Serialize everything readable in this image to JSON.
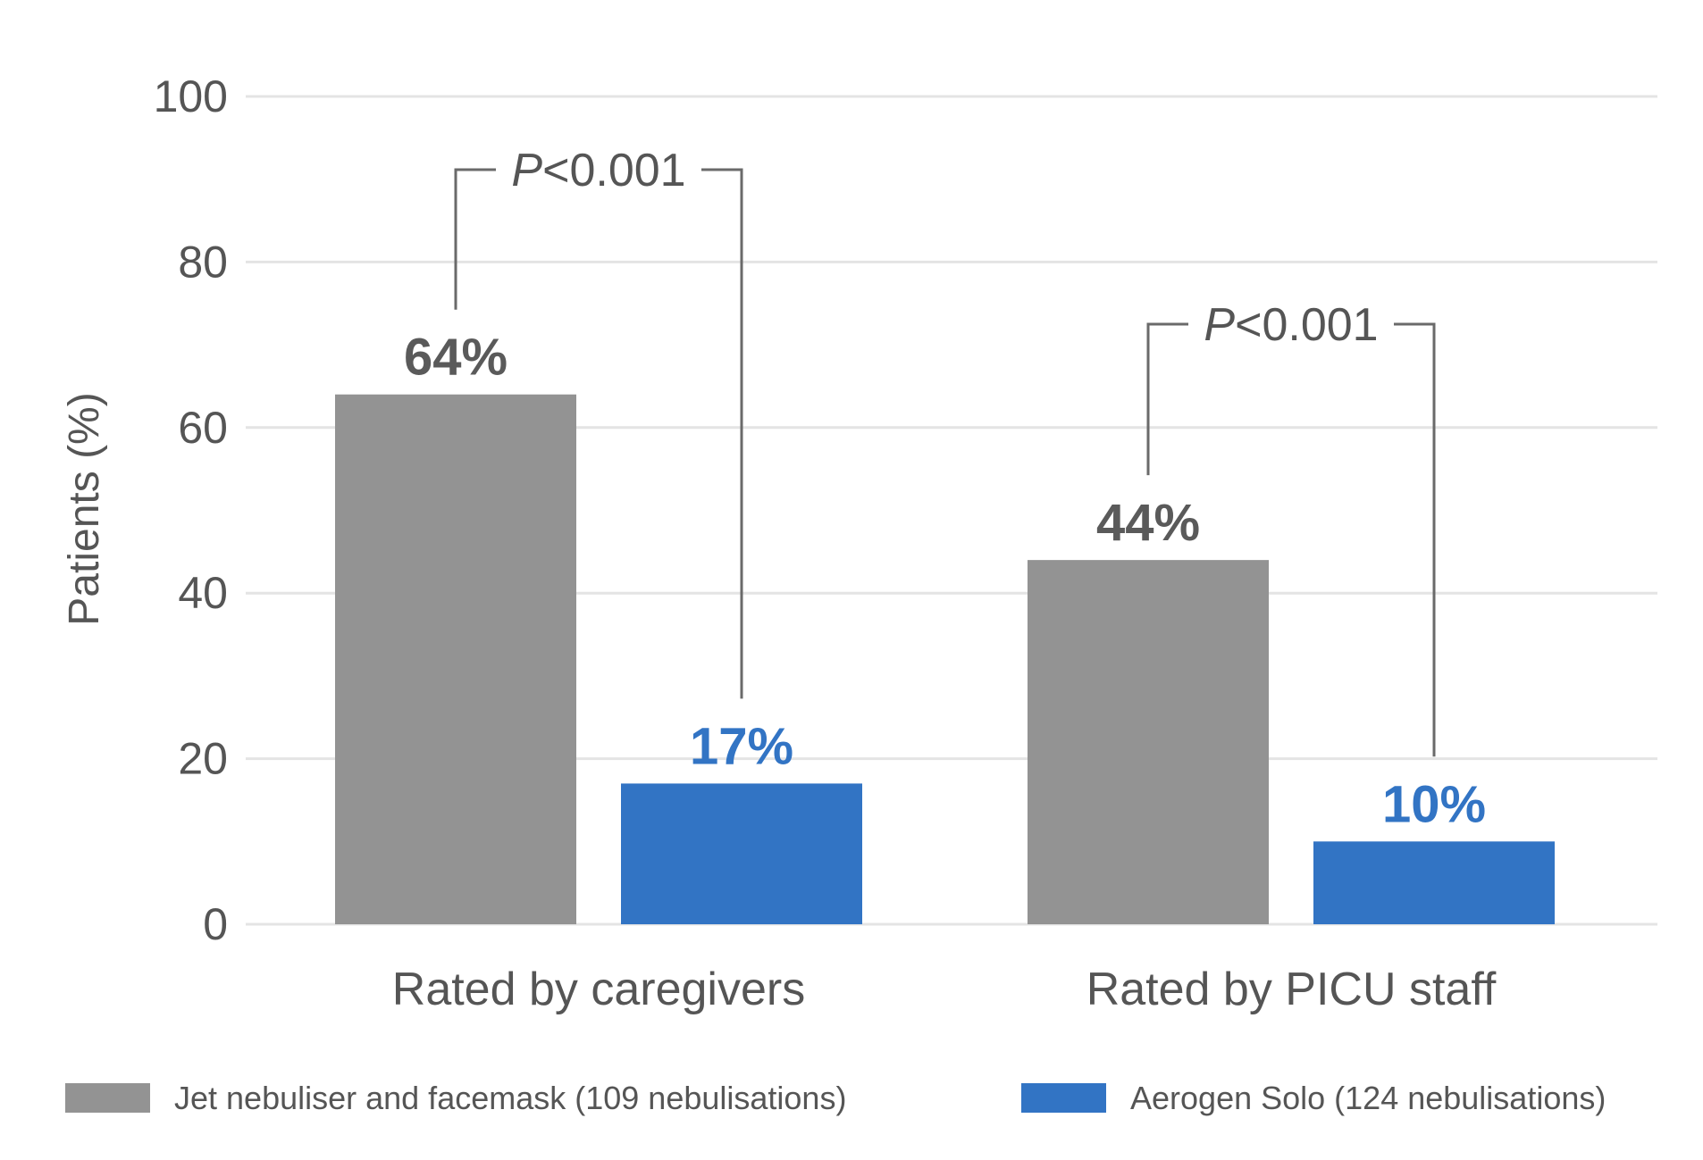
{
  "chart_data": {
    "type": "bar",
    "ylabel": "Patients (%)",
    "ylim": [
      0,
      100
    ],
    "yticks": [
      0,
      20,
      40,
      60,
      80,
      100
    ],
    "grid": true,
    "legend_position": "bottom",
    "categories": [
      "Rated by caregivers",
      "Rated by PICU staff"
    ],
    "series": [
      {
        "name": "Jet nebuliser and facemask (109 nebulisations)",
        "color": "#939393",
        "value_color": "#5a5a5a",
        "values": [
          64,
          44
        ],
        "labels": [
          "64%",
          "44%"
        ]
      },
      {
        "name": "Aerogen Solo (124 nebulisations)",
        "color": "#3274c4",
        "value_color": "#3274c4",
        "values": [
          17,
          10
        ],
        "labels": [
          "17%",
          "10%"
        ]
      }
    ],
    "annotations": [
      {
        "category": 0,
        "label_prefix": "P",
        "label_suffix": "<0.001"
      },
      {
        "category": 1,
        "label_prefix": "P",
        "label_suffix": "<0.001"
      }
    ]
  }
}
